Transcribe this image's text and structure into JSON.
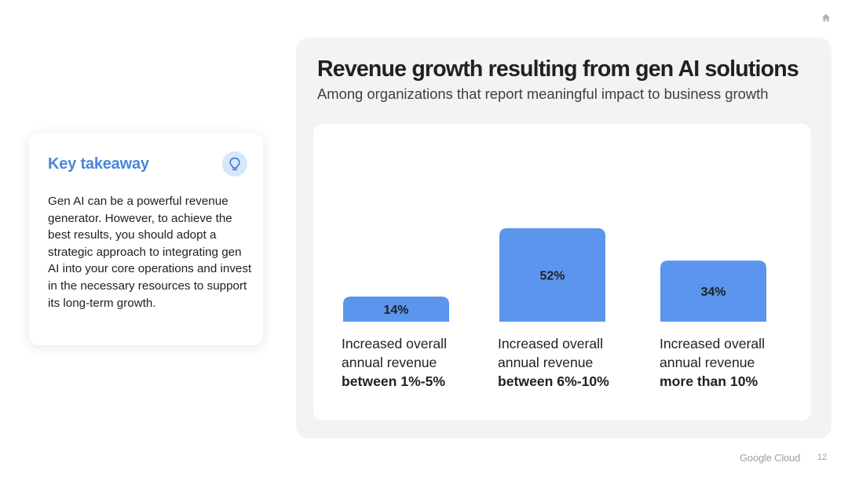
{
  "takeaway": {
    "title": "Key takeaway",
    "icon": "lightbulb-icon",
    "body": "Gen AI can be a powerful revenue generator. However, to achieve the best results, you should adopt a strategic approach to integrating gen AI into your core operations and invest in the necessary resources to support its long-term growth."
  },
  "chart": {
    "title": "Revenue growth resulting from gen AI solutions",
    "subtitle": "Among organizations that report meaningful impact to business growth"
  },
  "chart_data": {
    "type": "bar",
    "title": "Revenue growth resulting from gen AI solutions",
    "subtitle": "Among organizations that report meaningful impact to business growth",
    "categories": [
      {
        "line1": "Increased overall",
        "line2": "annual revenue",
        "line3": "between 1%-5%"
      },
      {
        "line1": "Increased overall",
        "line2": "annual revenue",
        "line3": "between 6%-10%"
      },
      {
        "line1": "Increased overall",
        "line2": "annual revenue",
        "line3": "more than 10%"
      }
    ],
    "values": [
      14,
      52,
      34
    ],
    "value_labels": [
      "14%",
      "52%",
      "34%"
    ],
    "unit": "%",
    "ylim": [
      0,
      100
    ],
    "grid": false,
    "legend": "none",
    "bar_color": "#5b95ee"
  },
  "footer": {
    "brand": "Google Cloud",
    "page": "12",
    "home_icon": "home-icon"
  },
  "colors": {
    "accent": "#4a86d8",
    "bar": "#5b95ee",
    "panel": "#f3f3f4"
  }
}
